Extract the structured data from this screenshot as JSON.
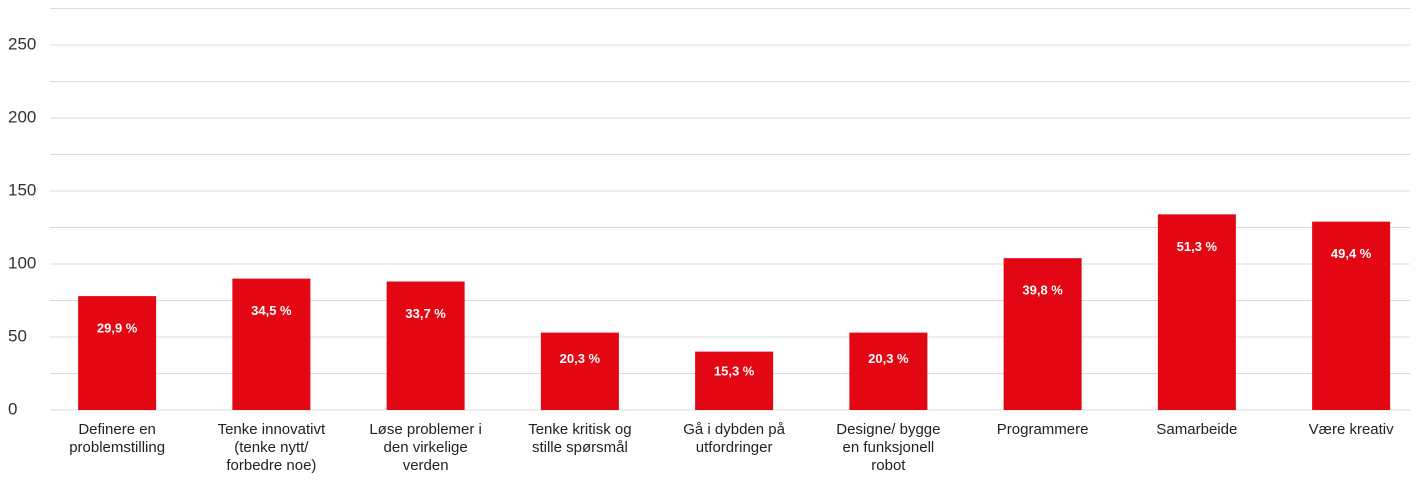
{
  "chart_data": {
    "type": "bar",
    "categories": [
      "Definere en problemstilling",
      "Tenke innovativt (tenke nytt/ forbedre noe)",
      "Løse problemer i den virkelige verden",
      "Tenke kritisk og stille spørsmål",
      "Gå i dybden på utfordringer",
      "Designe/ bygge en funksjonell robot",
      "Programmere",
      "Samarbeide",
      "Være kreativ"
    ],
    "values": [
      78,
      90,
      88,
      53,
      40,
      53,
      104,
      134,
      129
    ],
    "value_labels": [
      "29,9 %",
      "34,5 %",
      "33,7 %",
      "20,3 %",
      "15,3 %",
      "20,3 %",
      "39,8 %",
      "51,3 %",
      "49,4 %"
    ],
    "color": "#e30613",
    "ylim": [
      0,
      275
    ],
    "yticks": [
      0,
      50,
      100,
      150,
      200,
      250
    ],
    "minor_gridlines": [
      25,
      75,
      125,
      175,
      225,
      275
    ],
    "grid": true
  }
}
